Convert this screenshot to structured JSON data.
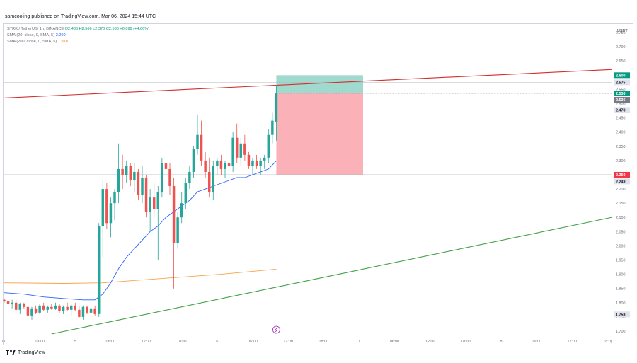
{
  "header": {
    "published": "samcooling published on TradingView.com, Mar 06, 2024 15:44 UTC"
  },
  "legend": {
    "symbol": "STRK / TetherUS, 1h, BINANCE",
    "ohlc": "O2.436 H2.566 L2.370 C2.536 +0.099 (+4.06%)",
    "sma20_label": "SMA (20, close, 0, SMA, 5)",
    "sma20_value": "2.299",
    "sma200_label": "SMA (200, close, 0, SMA, 5)",
    "sma200_value": "1.918"
  },
  "footer": {
    "brand": "TradingView"
  },
  "colors": {
    "up": "#26a69a",
    "down": "#ef5350",
    "sma20": "#2962ff",
    "sma200": "#f7a24b",
    "resistance": "#d32f2f",
    "support": "#43a047",
    "target_zone": "#8fd3c5",
    "stop_zone": "#f9a9b0"
  },
  "chart_data": {
    "type": "candlestick",
    "currency": "USDT",
    "ylim": [
      1.68,
      2.78
    ],
    "y_ticks": [
      "2.750",
      "2.700",
      "2.650",
      "2.600",
      "2.550",
      "2.500",
      "2.450",
      "2.400",
      "2.350",
      "2.300",
      "2.250",
      "2.200",
      "2.150",
      "2.100",
      "2.050",
      "2.000",
      "1.950",
      "1.900",
      "1.850",
      "1.800",
      "1.750",
      "1.700"
    ],
    "x_tick_labels": [
      "00",
      "18:00",
      "5",
      "06:00",
      "12:00",
      "18:00",
      "6",
      "06:00",
      "12:00",
      "18:00",
      "7",
      "06:00",
      "12:00",
      "18:00",
      "8",
      "06:00",
      "12:00",
      "18:0("
    ],
    "x_tick_index": [
      0,
      9,
      18,
      27,
      36,
      45,
      54,
      63,
      72,
      81,
      90,
      99,
      108,
      117,
      126,
      135,
      144,
      153
    ],
    "x_range": [
      0,
      154
    ],
    "candles": [
      [
        0,
        1.81,
        1.815,
        1.8,
        1.805
      ],
      [
        1,
        1.805,
        1.81,
        1.79,
        1.795
      ],
      [
        2,
        1.795,
        1.81,
        1.78,
        1.8
      ],
      [
        3,
        1.8,
        1.81,
        1.77,
        1.775
      ],
      [
        4,
        1.775,
        1.8,
        1.76,
        1.795
      ],
      [
        5,
        1.795,
        1.8,
        1.78,
        1.785
      ],
      [
        6,
        1.785,
        1.79,
        1.745,
        1.755
      ],
      [
        7,
        1.755,
        1.785,
        1.74,
        1.78
      ],
      [
        8,
        1.78,
        1.79,
        1.76,
        1.765
      ],
      [
        9,
        1.765,
        1.795,
        1.76,
        1.79
      ],
      [
        10,
        1.79,
        1.8,
        1.77,
        1.775
      ],
      [
        11,
        1.775,
        1.79,
        1.765,
        1.785
      ],
      [
        12,
        1.785,
        1.795,
        1.775,
        1.78
      ],
      [
        13,
        1.78,
        1.8,
        1.775,
        1.79
      ],
      [
        14,
        1.79,
        1.795,
        1.765,
        1.77
      ],
      [
        15,
        1.77,
        1.79,
        1.76,
        1.785
      ],
      [
        16,
        1.785,
        1.8,
        1.77,
        1.775
      ],
      [
        17,
        1.775,
        1.795,
        1.755,
        1.79
      ],
      [
        18,
        1.79,
        1.8,
        1.77,
        1.775
      ],
      [
        19,
        1.775,
        1.79,
        1.745,
        1.75
      ],
      [
        20,
        1.75,
        1.79,
        1.74,
        1.785
      ],
      [
        21,
        1.785,
        1.79,
        1.76,
        1.765
      ],
      [
        22,
        1.765,
        1.785,
        1.74,
        1.78
      ],
      [
        23,
        1.78,
        1.79,
        1.755,
        1.76
      ],
      [
        24,
        1.76,
        2.08,
        1.75,
        2.07
      ],
      [
        25,
        2.07,
        2.23,
        1.96,
        2.2
      ],
      [
        26,
        2.2,
        2.22,
        2.06,
        2.08
      ],
      [
        27,
        2.08,
        2.17,
        2.03,
        2.15
      ],
      [
        28,
        2.15,
        2.2,
        2.09,
        2.19
      ],
      [
        29,
        2.19,
        2.36,
        2.15,
        2.27
      ],
      [
        30,
        2.27,
        2.32,
        2.2,
        2.25
      ],
      [
        31,
        2.25,
        2.3,
        2.22,
        2.28
      ],
      [
        32,
        2.28,
        2.29,
        2.21,
        2.23
      ],
      [
        33,
        2.23,
        2.29,
        2.19,
        2.26
      ],
      [
        34,
        2.26,
        2.27,
        2.16,
        2.18
      ],
      [
        35,
        2.18,
        2.28,
        2.15,
        2.24
      ],
      [
        36,
        2.24,
        2.25,
        2.1,
        2.12
      ],
      [
        37,
        2.12,
        2.2,
        2.05,
        2.17
      ],
      [
        38,
        2.17,
        2.22,
        2.1,
        2.13
      ],
      [
        39,
        2.13,
        2.21,
        1.95,
        2.19
      ],
      [
        40,
        2.19,
        2.31,
        2.17,
        2.29
      ],
      [
        41,
        2.29,
        2.36,
        2.26,
        2.27
      ],
      [
        42,
        2.27,
        2.29,
        2.18,
        2.21
      ],
      [
        43,
        2.21,
        2.24,
        1.85,
        2.01
      ],
      [
        44,
        2.01,
        2.12,
        1.99,
        2.1
      ],
      [
        45,
        2.1,
        2.19,
        2.08,
        2.15
      ],
      [
        46,
        2.15,
        2.24,
        2.13,
        2.22
      ],
      [
        47,
        2.22,
        2.28,
        2.2,
        2.26
      ],
      [
        48,
        2.26,
        2.35,
        2.24,
        2.34
      ],
      [
        49,
        2.34,
        2.46,
        2.32,
        2.39
      ],
      [
        50,
        2.39,
        2.44,
        2.28,
        2.3
      ],
      [
        51,
        2.3,
        2.33,
        2.24,
        2.26
      ],
      [
        52,
        2.26,
        2.31,
        2.17,
        2.19
      ],
      [
        53,
        2.19,
        2.3,
        2.16,
        2.28
      ],
      [
        54,
        2.28,
        2.31,
        2.25,
        2.3
      ],
      [
        55,
        2.3,
        2.32,
        2.25,
        2.27
      ],
      [
        56,
        2.27,
        2.3,
        2.24,
        2.29
      ],
      [
        57,
        2.29,
        2.33,
        2.25,
        2.28
      ],
      [
        58,
        2.28,
        2.4,
        2.26,
        2.38
      ],
      [
        59,
        2.38,
        2.43,
        2.29,
        2.31
      ],
      [
        60,
        2.31,
        2.38,
        2.28,
        2.36
      ],
      [
        61,
        2.36,
        2.39,
        2.3,
        2.32
      ],
      [
        62,
        2.32,
        2.33,
        2.27,
        2.28
      ],
      [
        63,
        2.28,
        2.31,
        2.25,
        2.3
      ],
      [
        64,
        2.3,
        2.32,
        2.27,
        2.28
      ],
      [
        65,
        2.28,
        2.31,
        2.25,
        2.3
      ],
      [
        66,
        2.3,
        2.32,
        2.27,
        2.31
      ],
      [
        67,
        2.31,
        2.41,
        2.29,
        2.39
      ],
      [
        68,
        2.39,
        2.47,
        2.36,
        2.44
      ],
      [
        69,
        2.436,
        2.566,
        2.37,
        2.536
      ]
    ],
    "sma20": [
      [
        0,
        1.835
      ],
      [
        5,
        1.83
      ],
      [
        10,
        1.82
      ],
      [
        15,
        1.815
      ],
      [
        20,
        1.81
      ],
      [
        23,
        1.81
      ],
      [
        25,
        1.83
      ],
      [
        27,
        1.87
      ],
      [
        29,
        1.92
      ],
      [
        31,
        1.96
      ],
      [
        33,
        1.99
      ],
      [
        35,
        2.02
      ],
      [
        37,
        2.05
      ],
      [
        39,
        2.07
      ],
      [
        41,
        2.1
      ],
      [
        43,
        2.12
      ],
      [
        45,
        2.14
      ],
      [
        47,
        2.16
      ],
      [
        49,
        2.19
      ],
      [
        51,
        2.2
      ],
      [
        53,
        2.21
      ],
      [
        55,
        2.22
      ],
      [
        57,
        2.23
      ],
      [
        59,
        2.24
      ],
      [
        61,
        2.24
      ],
      [
        63,
        2.25
      ],
      [
        65,
        2.26
      ],
      [
        67,
        2.27
      ],
      [
        69,
        2.299
      ]
    ],
    "sma200": [
      [
        0,
        1.87
      ],
      [
        15,
        1.868
      ],
      [
        25,
        1.87
      ],
      [
        35,
        1.88
      ],
      [
        45,
        1.89
      ],
      [
        55,
        1.9
      ],
      [
        65,
        1.913
      ],
      [
        69,
        1.918
      ]
    ],
    "resistance_line": [
      [
        0,
        2.52
      ],
      [
        154,
        2.62
      ]
    ],
    "support_line": [
      [
        12,
        1.69
      ],
      [
        154,
        2.1
      ]
    ],
    "position": {
      "x_start": 69,
      "x_end": 91,
      "target": 2.6,
      "entry": 2.536,
      "stop": 2.25,
      "target_label": "2.600",
      "entry_label": "2.536",
      "stop_label": "2.250"
    },
    "price_labels": [
      {
        "value": 2.6,
        "text": "2.600",
        "style": "up"
      },
      {
        "value": 2.575,
        "text": "2.575",
        "style": "plain"
      },
      {
        "value": 2.536,
        "text": "2.536",
        "style": "up"
      },
      {
        "value": 2.536,
        "text": "2.536",
        "style": "gray",
        "offset": 9
      },
      {
        "value": 2.478,
        "text": "2.478",
        "style": "plain"
      },
      {
        "value": 2.25,
        "text": "2.250",
        "style": "down"
      },
      {
        "value": 2.249,
        "text": "2.249",
        "style": "plain",
        "offset": 9
      },
      {
        "value": 1.759,
        "text": "1.759",
        "style": "plain"
      }
    ],
    "hlines": [
      2.575,
      2.478
    ],
    "event_marker_x": 69
  }
}
